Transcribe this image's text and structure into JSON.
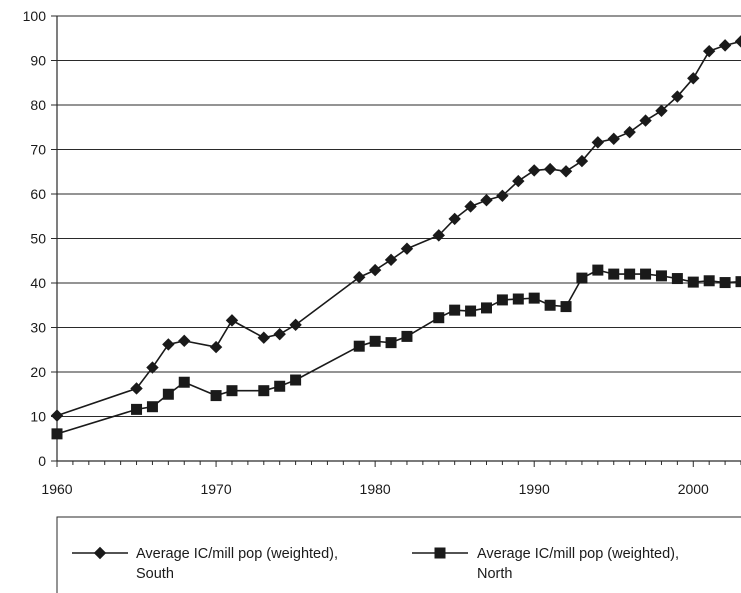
{
  "chart_data": {
    "type": "line",
    "title": "",
    "xlabel": "",
    "ylabel": "",
    "xlim": [
      1960,
      2003
    ],
    "ylim": [
      0,
      100
    ],
    "x_ticks": [
      1960,
      1970,
      1980,
      1990,
      2000
    ],
    "y_ticks": [
      0,
      10,
      20,
      30,
      40,
      50,
      60,
      70,
      80,
      90,
      100
    ],
    "grid": "horizontal",
    "legend_position": "bottom",
    "series": [
      {
        "name_lines": [
          "Average IC/mill pop (weighted),",
          "South"
        ],
        "marker": "diamond",
        "color": "#1a1a1a",
        "points": [
          [
            1960,
            10.2
          ],
          [
            1965,
            16.3
          ],
          [
            1966,
            21.0
          ],
          [
            1967,
            26.2
          ],
          [
            1968,
            27.0
          ],
          [
            1970,
            25.6
          ],
          [
            1971,
            31.6
          ],
          [
            1973,
            27.7
          ],
          [
            1974,
            28.5
          ],
          [
            1975,
            30.6
          ],
          [
            1979,
            41.3
          ],
          [
            1980,
            42.9
          ],
          [
            1981,
            45.2
          ],
          [
            1982,
            47.7
          ],
          [
            1984,
            50.7
          ],
          [
            1985,
            54.4
          ],
          [
            1986,
            57.2
          ],
          [
            1987,
            58.6
          ],
          [
            1988,
            59.6
          ],
          [
            1989,
            62.9
          ],
          [
            1990,
            65.3
          ],
          [
            1991,
            65.6
          ],
          [
            1992,
            65.1
          ],
          [
            1993,
            67.4
          ],
          [
            1994,
            71.6
          ],
          [
            1995,
            72.4
          ],
          [
            1996,
            73.9
          ],
          [
            1997,
            76.5
          ],
          [
            1998,
            78.7
          ],
          [
            1999,
            81.9
          ],
          [
            2000,
            86.0
          ],
          [
            2001,
            92.1
          ],
          [
            2002,
            93.4
          ],
          [
            2003,
            94.3
          ]
        ]
      },
      {
        "name_lines": [
          "Average IC/mill pop (weighted),",
          "North"
        ],
        "marker": "square",
        "color": "#1a1a1a",
        "points": [
          [
            1960,
            6.1
          ],
          [
            1965,
            11.6
          ],
          [
            1966,
            12.2
          ],
          [
            1967,
            15.0
          ],
          [
            1968,
            17.7
          ],
          [
            1970,
            14.7
          ],
          [
            1971,
            15.8
          ],
          [
            1973,
            15.8
          ],
          [
            1974,
            16.8
          ],
          [
            1975,
            18.2
          ],
          [
            1979,
            25.8
          ],
          [
            1980,
            26.9
          ],
          [
            1981,
            26.6
          ],
          [
            1982,
            28.0
          ],
          [
            1984,
            32.2
          ],
          [
            1985,
            33.9
          ],
          [
            1986,
            33.7
          ],
          [
            1987,
            34.4
          ],
          [
            1988,
            36.2
          ],
          [
            1989,
            36.4
          ],
          [
            1990,
            36.6
          ],
          [
            1991,
            35.0
          ],
          [
            1992,
            34.7
          ],
          [
            1993,
            41.1
          ],
          [
            1994,
            42.9
          ],
          [
            1995,
            42.0
          ],
          [
            1996,
            42.0
          ],
          [
            1997,
            42.0
          ],
          [
            1998,
            41.6
          ],
          [
            1999,
            41.0
          ],
          [
            2000,
            40.2
          ],
          [
            2001,
            40.5
          ],
          [
            2002,
            40.1
          ],
          [
            2003,
            40.3
          ]
        ]
      }
    ]
  }
}
